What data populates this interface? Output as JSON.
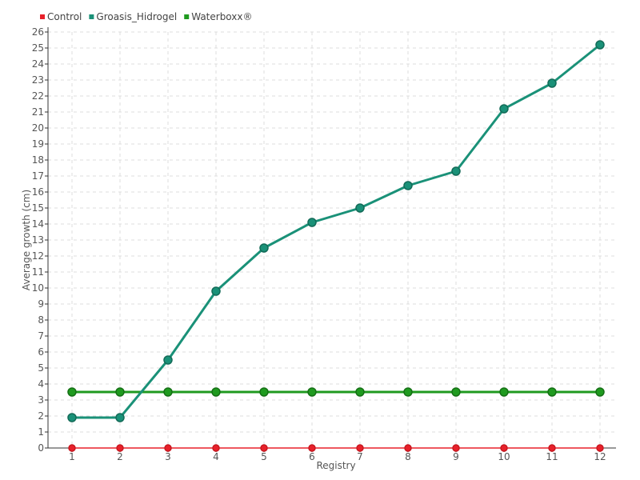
{
  "chart_data": {
    "type": "line",
    "title": "",
    "xlabel": "Registry",
    "ylabel": "Average growth (cm)",
    "categories": [
      "1",
      "2",
      "3",
      "4",
      "5",
      "6",
      "7",
      "8",
      "9",
      "10",
      "11",
      "12"
    ],
    "ylim": [
      0,
      26
    ],
    "yticks": [
      0,
      1,
      2,
      3,
      4,
      5,
      6,
      7,
      8,
      9,
      10,
      11,
      12,
      13,
      14,
      15,
      16,
      17,
      18,
      19,
      20,
      21,
      22,
      23,
      24,
      25,
      26
    ],
    "grid": true,
    "legend_position": "top-left",
    "series": [
      {
        "name": "Control",
        "color": "#e8202a",
        "values": [
          0,
          0,
          0,
          0,
          0,
          0,
          0,
          0,
          0,
          0,
          0,
          0
        ]
      },
      {
        "name": "Groasis_Hidrogel",
        "color": "#1a9178",
        "values": [
          1.9,
          1.9,
          5.5,
          9.8,
          12.5,
          14.1,
          15.0,
          16.4,
          17.3,
          21.2,
          22.8,
          25.2
        ]
      },
      {
        "name": "Waterboxx®",
        "color": "#1f9a1f",
        "values": [
          3.5,
          3.5,
          3.5,
          3.5,
          3.5,
          3.5,
          3.5,
          3.5,
          3.5,
          3.5,
          3.5,
          3.5
        ]
      }
    ]
  }
}
